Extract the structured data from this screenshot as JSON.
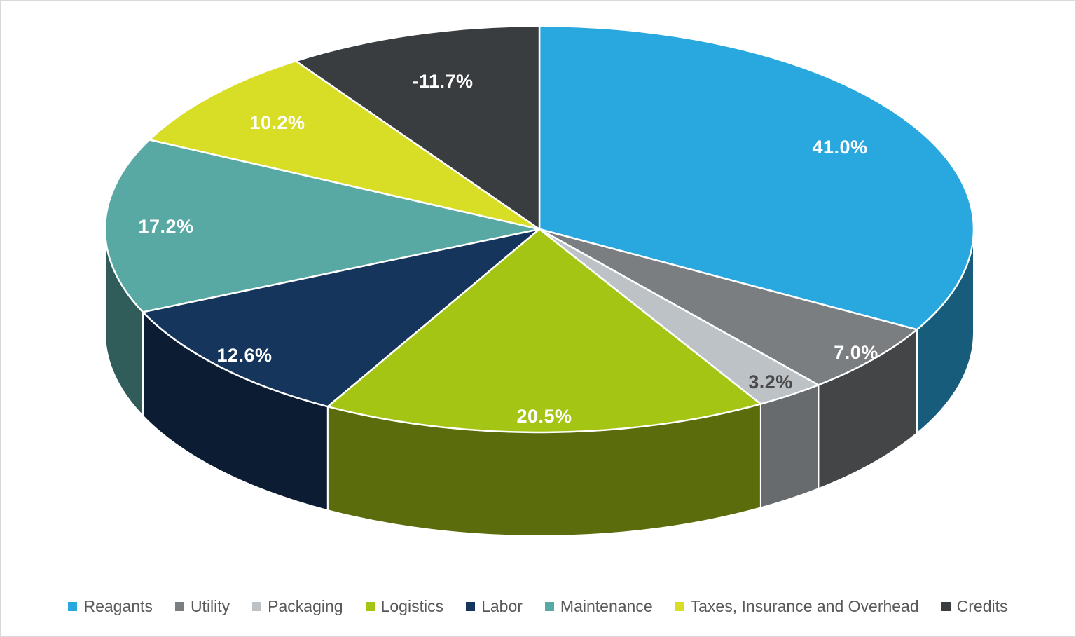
{
  "chart_data": {
    "type": "pie",
    "title": "",
    "xlabel": "",
    "ylabel": "",
    "layout": {
      "effect": "3d",
      "legend_position": "bottom",
      "start_angle_deg": 0,
      "direction": "clockwise",
      "negative_values_plotted_as_absolute": true,
      "slice_border_color": "#ffffff",
      "legend_text_color": "#595959"
    },
    "series": [
      {
        "label": "Reagants",
        "value": 41.0,
        "display": "41.0%",
        "color": "#29A8DF",
        "label_color": "#FFFFFF"
      },
      {
        "label": "Utility",
        "value": 7.0,
        "display": "7.0%",
        "color": "#7B7E81",
        "label_color": "#FFFFFF"
      },
      {
        "label": "Packaging",
        "value": 3.2,
        "display": "3.2%",
        "color": "#BDC2C7",
        "label_color": "#4A4A4A"
      },
      {
        "label": "Logistics",
        "value": 20.5,
        "display": "20.5%",
        "color": "#A5C515",
        "label_color": "#FFFFFF"
      },
      {
        "label": "Labor",
        "value": 12.6,
        "display": "12.6%",
        "color": "#16355D",
        "label_color": "#FFFFFF"
      },
      {
        "label": "Maintenance",
        "value": 17.2,
        "display": "17.2%",
        "color": "#58A9A3",
        "label_color": "#FFFFFF"
      },
      {
        "label": "Taxes, Insurance and Overhead",
        "value": 10.2,
        "display": "10.2%",
        "color": "#D8DE26",
        "label_color": "#FFFFFF"
      },
      {
        "label": "Credits",
        "value": -11.7,
        "display": "-11.7%",
        "color": "#3A3D3F",
        "label_color": "#FFFFFF"
      }
    ]
  }
}
